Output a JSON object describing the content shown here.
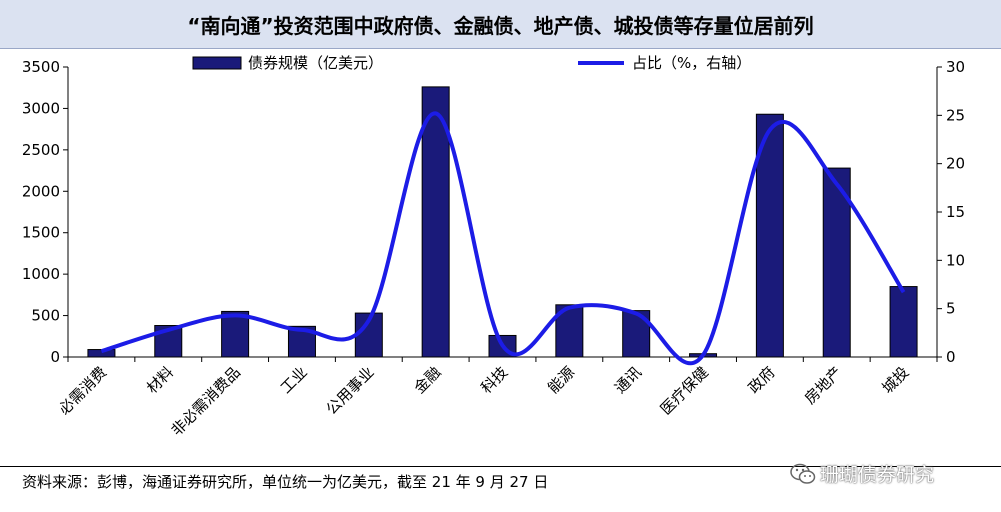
{
  "title": "“南向通”投资范围中政府债、金融债、地产债、城投债等存量位居前列",
  "source": "资料来源：彭博，海通证券研究所，单位统一为亿美元，截至 21 年 9 月 27 日",
  "watermark": "珊瑚债券研究",
  "colors": {
    "bar": "#1a1a7a",
    "line": "#1c1ce6",
    "title_bg": "#dbe2f1"
  },
  "chart_data": {
    "type": "bar+line",
    "categories": [
      "必需消费",
      "材料",
      "非必需消费品",
      "工业",
      "公用事业",
      "金融",
      "科技",
      "能源",
      "通讯",
      "医疗保健",
      "政府",
      "房地产",
      "城投"
    ],
    "series": [
      {
        "name": "债券规模（亿美元）",
        "type": "bar",
        "axis": "left",
        "values": [
          90,
          380,
          550,
          370,
          530,
          3260,
          260,
          630,
          560,
          40,
          2930,
          2280,
          850
        ]
      },
      {
        "name": "占比（%，右轴）",
        "type": "line",
        "axis": "right",
        "values": [
          0.6,
          2.8,
          4.3,
          2.8,
          3.8,
          25.2,
          1.2,
          5.1,
          4.5,
          0.2,
          23.5,
          17.9,
          6.7
        ]
      }
    ],
    "ylim_left": [
      0,
      3500
    ],
    "yticks_left": [
      "0",
      "500",
      "1000",
      "1500",
      "2000",
      "2500",
      "3000",
      "3500"
    ],
    "ylim_right": [
      0,
      30
    ],
    "yticks_right": [
      "0",
      "5",
      "10",
      "15",
      "20",
      "25",
      "30"
    ],
    "grid": false,
    "legend_position": "top"
  }
}
